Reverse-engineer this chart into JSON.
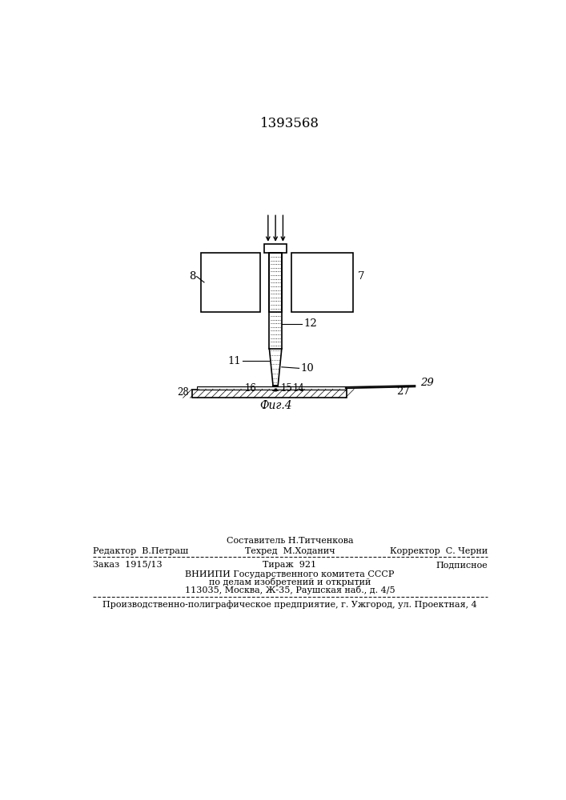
{
  "title": "1393568",
  "fig_label": "Фиг.4",
  "bg_color": "#ffffff",
  "line_color": "#000000",
  "footer": {
    "line1_text": "Составитель Н.Титченкова",
    "line2_left": "Редактор  В.Петраш",
    "line2_center": "Техред  М.Ходанич",
    "line2_right": "Корректор  С. Черни",
    "line3_left": "Заказ  1915/13",
    "line3_center": "Тираж  921",
    "line3_right": "Подписное",
    "line4": "ВНИИПИ Государственного комитета СССР",
    "line5": "по делам изобретений и открытий",
    "line6": "113035, Москва, Ж-35, Раушская наб., д. 4/5",
    "line7": "Производственно-полиграфическое предприятие, г. Ужгород, ул. Проектная, 4"
  }
}
